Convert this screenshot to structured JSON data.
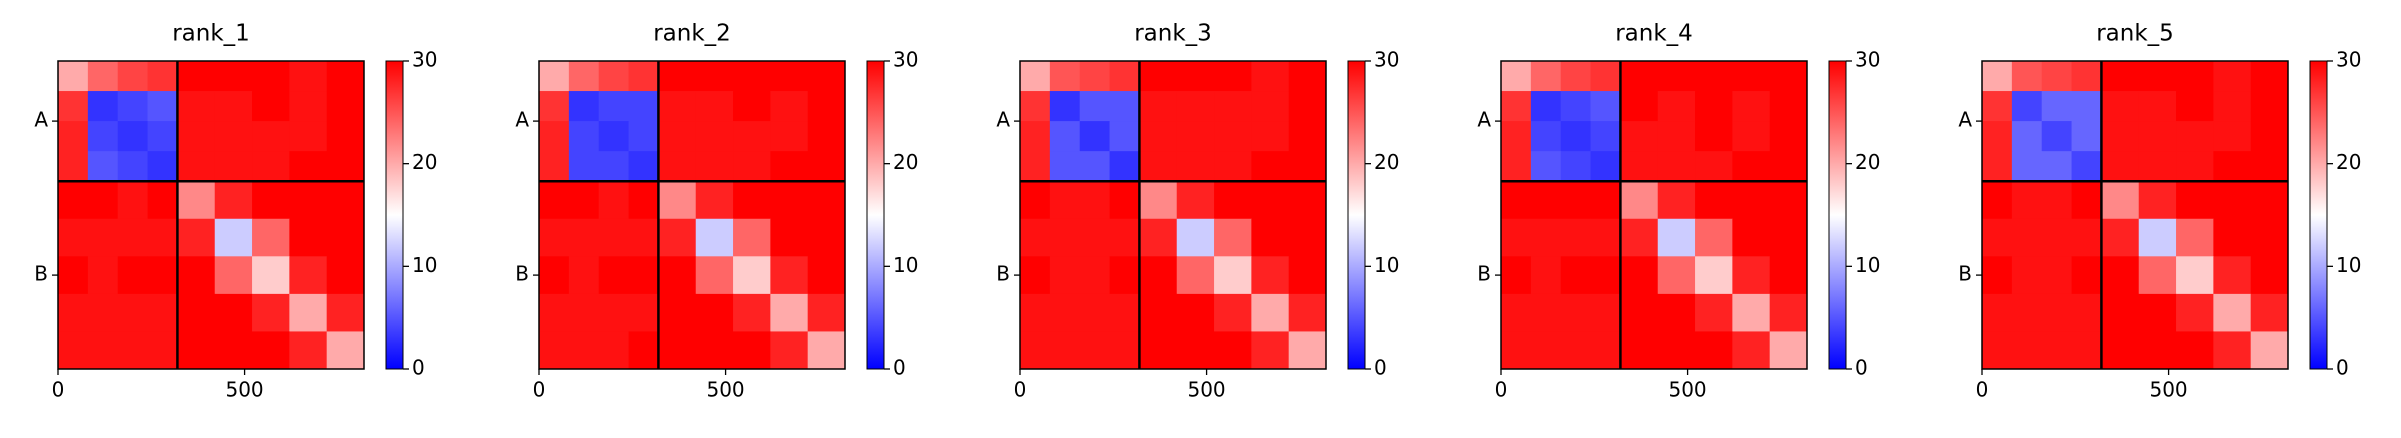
{
  "chart_data": [
    {
      "type": "heatmap",
      "title": "rank_1",
      "edges": [
        0,
        80,
        160,
        240,
        320,
        420,
        520,
        620,
        720,
        820
      ],
      "xlim": [
        0,
        820
      ],
      "ylim": [
        0,
        820
      ],
      "xticks": [
        0,
        500
      ],
      "yticks": [
        {
          "value": 160,
          "label": "A"
        },
        {
          "value": 570,
          "label": "B"
        }
      ],
      "chain_breaks": [
        320
      ],
      "clim": [
        0,
        30
      ],
      "cticks": [
        0,
        10,
        20,
        30
      ],
      "colormap": "bwr",
      "matrix": [
        [
          20,
          24,
          26,
          27,
          30,
          30,
          30,
          29,
          30
        ],
        [
          27,
          3,
          4,
          5,
          29,
          29,
          30,
          29,
          30
        ],
        [
          28,
          4,
          3,
          4,
          29,
          29,
          29,
          29,
          30
        ],
        [
          28,
          5,
          4,
          3,
          29,
          29,
          29,
          30,
          30
        ],
        [
          30,
          30,
          29,
          30,
          22,
          28,
          30,
          30,
          30
        ],
        [
          29,
          29,
          29,
          29,
          28,
          12,
          24,
          30,
          30
        ],
        [
          30,
          29,
          30,
          30,
          30,
          24,
          18,
          28,
          30
        ],
        [
          29,
          29,
          29,
          29,
          30,
          30,
          28,
          20,
          28
        ],
        [
          29,
          29,
          29,
          29,
          30,
          30,
          30,
          28,
          20
        ]
      ]
    },
    {
      "type": "heatmap",
      "title": "rank_2",
      "edges": [
        0,
        80,
        160,
        240,
        320,
        420,
        520,
        620,
        720,
        820
      ],
      "xlim": [
        0,
        820
      ],
      "ylim": [
        0,
        820
      ],
      "xticks": [
        0,
        500
      ],
      "yticks": [
        {
          "value": 160,
          "label": "A"
        },
        {
          "value": 570,
          "label": "B"
        }
      ],
      "chain_breaks": [
        320
      ],
      "clim": [
        0,
        30
      ],
      "cticks": [
        0,
        10,
        20,
        30
      ],
      "colormap": "bwr",
      "matrix": [
        [
          20,
          24,
          26,
          27,
          30,
          30,
          30,
          30,
          30
        ],
        [
          27,
          3,
          4,
          4,
          29,
          29,
          30,
          29,
          30
        ],
        [
          28,
          4,
          3,
          4,
          29,
          29,
          29,
          29,
          30
        ],
        [
          28,
          4,
          4,
          3,
          29,
          29,
          29,
          30,
          30
        ],
        [
          30,
          30,
          29,
          30,
          22,
          28,
          30,
          30,
          30
        ],
        [
          29,
          29,
          29,
          29,
          28,
          12,
          24,
          30,
          30
        ],
        [
          30,
          29,
          30,
          30,
          30,
          24,
          18,
          28,
          30
        ],
        [
          29,
          29,
          29,
          29,
          30,
          30,
          28,
          20,
          28
        ],
        [
          29,
          29,
          29,
          30,
          30,
          30,
          30,
          28,
          20
        ]
      ]
    },
    {
      "type": "heatmap",
      "title": "rank_3",
      "edges": [
        0,
        80,
        160,
        240,
        320,
        420,
        520,
        620,
        720,
        820
      ],
      "xlim": [
        0,
        820
      ],
      "ylim": [
        0,
        820
      ],
      "xticks": [
        0,
        500
      ],
      "yticks": [
        {
          "value": 160,
          "label": "A"
        },
        {
          "value": 570,
          "label": "B"
        }
      ],
      "chain_breaks": [
        320
      ],
      "clim": [
        0,
        30
      ],
      "cticks": [
        0,
        10,
        20,
        30
      ],
      "colormap": "bwr",
      "matrix": [
        [
          20,
          25,
          26,
          27,
          30,
          30,
          30,
          29,
          30
        ],
        [
          27,
          3,
          5,
          5,
          29,
          29,
          29,
          29,
          30
        ],
        [
          28,
          5,
          3,
          5,
          29,
          29,
          29,
          29,
          30
        ],
        [
          28,
          5,
          5,
          3,
          29,
          29,
          29,
          30,
          30
        ],
        [
          30,
          29,
          29,
          30,
          22,
          28,
          30,
          30,
          30
        ],
        [
          29,
          29,
          29,
          29,
          28,
          12,
          24,
          30,
          30
        ],
        [
          30,
          29,
          29,
          30,
          30,
          24,
          18,
          28,
          30
        ],
        [
          29,
          29,
          29,
          29,
          30,
          30,
          28,
          20,
          28
        ],
        [
          29,
          29,
          29,
          29,
          30,
          30,
          30,
          28,
          20
        ]
      ]
    },
    {
      "type": "heatmap",
      "title": "rank_4",
      "edges": [
        0,
        80,
        160,
        240,
        320,
        420,
        520,
        620,
        720,
        820
      ],
      "xlim": [
        0,
        820
      ],
      "ylim": [
        0,
        820
      ],
      "xticks": [
        0,
        500
      ],
      "yticks": [
        {
          "value": 160,
          "label": "A"
        },
        {
          "value": 570,
          "label": "B"
        }
      ],
      "chain_breaks": [
        320
      ],
      "clim": [
        0,
        30
      ],
      "cticks": [
        0,
        10,
        20,
        30
      ],
      "colormap": "bwr",
      "matrix": [
        [
          20,
          24,
          26,
          27,
          30,
          30,
          30,
          30,
          30
        ],
        [
          27,
          3,
          4,
          5,
          30,
          29,
          30,
          29,
          30
        ],
        [
          28,
          4,
          3,
          4,
          29,
          29,
          30,
          29,
          30
        ],
        [
          28,
          5,
          4,
          3,
          29,
          29,
          29,
          30,
          30
        ],
        [
          30,
          30,
          30,
          30,
          22,
          28,
          30,
          30,
          30
        ],
        [
          29,
          29,
          29,
          29,
          28,
          12,
          24,
          30,
          30
        ],
        [
          30,
          29,
          30,
          30,
          30,
          24,
          18,
          28,
          30
        ],
        [
          29,
          29,
          29,
          29,
          30,
          30,
          28,
          20,
          28
        ],
        [
          29,
          29,
          29,
          29,
          30,
          30,
          30,
          28,
          20
        ]
      ]
    },
    {
      "type": "heatmap",
      "title": "rank_5",
      "edges": [
        0,
        80,
        160,
        240,
        320,
        420,
        520,
        620,
        720,
        820
      ],
      "xlim": [
        0,
        820
      ],
      "ylim": [
        0,
        820
      ],
      "xticks": [
        0,
        500
      ],
      "yticks": [
        {
          "value": 160,
          "label": "A"
        },
        {
          "value": 570,
          "label": "B"
        }
      ],
      "chain_breaks": [
        320
      ],
      "clim": [
        0,
        30
      ],
      "cticks": [
        0,
        10,
        20,
        30
      ],
      "colormap": "bwr",
      "matrix": [
        [
          20,
          25,
          26,
          27,
          30,
          30,
          30,
          29,
          30
        ],
        [
          27,
          4,
          6,
          6,
          29,
          29,
          30,
          29,
          30
        ],
        [
          28,
          6,
          4,
          6,
          29,
          29,
          29,
          29,
          30
        ],
        [
          28,
          6,
          6,
          4,
          29,
          29,
          29,
          30,
          30
        ],
        [
          30,
          29,
          29,
          30,
          22,
          28,
          30,
          30,
          30
        ],
        [
          29,
          29,
          29,
          29,
          28,
          12,
          24,
          30,
          30
        ],
        [
          30,
          29,
          29,
          30,
          30,
          24,
          18,
          28,
          30
        ],
        [
          29,
          29,
          29,
          29,
          30,
          30,
          28,
          20,
          28
        ],
        [
          29,
          29,
          29,
          29,
          30,
          30,
          30,
          28,
          20
        ]
      ]
    }
  ]
}
